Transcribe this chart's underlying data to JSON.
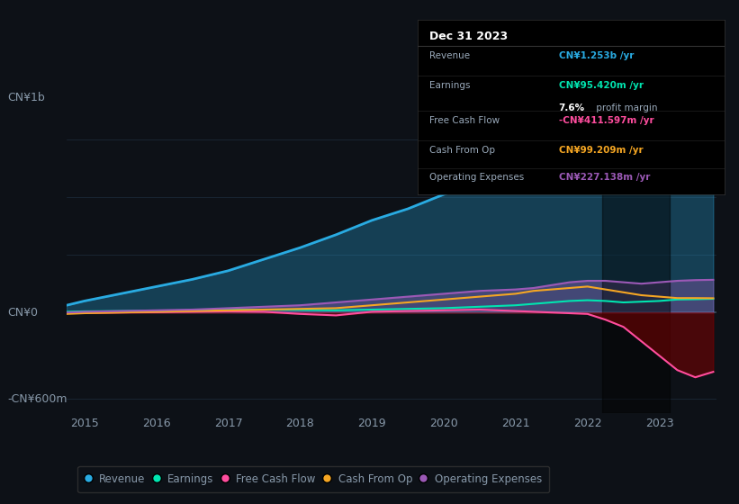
{
  "bg_color": "#0d1117",
  "grid_color": "#1e2d3d",
  "text_color": "#8899aa",
  "years": [
    2014.75,
    2015.0,
    2015.5,
    2016.0,
    2016.5,
    2017.0,
    2017.5,
    2018.0,
    2018.5,
    2019.0,
    2019.5,
    2020.0,
    2020.5,
    2021.0,
    2021.25,
    2021.5,
    2021.75,
    2022.0,
    2022.25,
    2022.5,
    2022.75,
    2023.0,
    2023.25,
    2023.5,
    2023.75
  ],
  "revenue": [
    50,
    80,
    130,
    180,
    230,
    290,
    370,
    450,
    540,
    640,
    720,
    820,
    900,
    980,
    1050,
    1150,
    1250,
    1280,
    1200,
    1100,
    1050,
    1100,
    1180,
    1230,
    1253
  ],
  "earnings": [
    5,
    8,
    10,
    12,
    15,
    18,
    20,
    18,
    15,
    20,
    25,
    30,
    40,
    50,
    60,
    70,
    80,
    85,
    80,
    70,
    75,
    80,
    90,
    92,
    95
  ],
  "free_cash_flow": [
    -5,
    -3,
    0,
    2,
    5,
    8,
    5,
    -10,
    -20,
    5,
    10,
    15,
    20,
    10,
    5,
    0,
    -5,
    -10,
    -50,
    -100,
    -200,
    -300,
    -400,
    -450,
    -412
  ],
  "cash_from_op": [
    -10,
    -5,
    0,
    5,
    10,
    15,
    20,
    25,
    30,
    50,
    70,
    90,
    110,
    130,
    150,
    160,
    170,
    180,
    160,
    140,
    120,
    110,
    100,
    100,
    99
  ],
  "operating_expenses": [
    0,
    5,
    10,
    15,
    20,
    30,
    40,
    50,
    70,
    90,
    110,
    130,
    150,
    160,
    170,
    190,
    210,
    220,
    220,
    210,
    200,
    210,
    220,
    225,
    227
  ],
  "revenue_color": "#29abe2",
  "earnings_color": "#00e5b0",
  "free_cash_flow_color": "#ff4d9e",
  "cash_from_op_color": "#f5a623",
  "op_expenses_color": "#9b59b6",
  "ylim": [
    -700,
    1400
  ],
  "xticks": [
    2015,
    2016,
    2017,
    2018,
    2019,
    2020,
    2021,
    2022,
    2023
  ],
  "highlight_start": 2022.2,
  "highlight_end": 2023.15,
  "legend_labels": [
    "Revenue",
    "Earnings",
    "Free Cash Flow",
    "Cash From Op",
    "Operating Expenses"
  ],
  "legend_colors": [
    "#29abe2",
    "#00e5b0",
    "#ff4d9e",
    "#f5a623",
    "#9b59b6"
  ],
  "tooltip": {
    "title": "Dec 31 2023",
    "rows": [
      {
        "label": "Revenue",
        "value": "CN¥1.253b /yr",
        "color": "#29abe2",
        "sub_bold": null,
        "sub_normal": null
      },
      {
        "label": "Earnings",
        "value": "CN¥95.420m /yr",
        "color": "#00e5b0",
        "sub_bold": "7.6%",
        "sub_normal": " profit margin"
      },
      {
        "label": "Free Cash Flow",
        "value": "-CN¥411.597m /yr",
        "color": "#ff4d9e",
        "sub_bold": null,
        "sub_normal": null
      },
      {
        "label": "Cash From Op",
        "value": "CN¥99.209m /yr",
        "color": "#f5a623",
        "sub_bold": null,
        "sub_normal": null
      },
      {
        "label": "Operating Expenses",
        "value": "CN¥227.138m /yr",
        "color": "#9b59b6",
        "sub_bold": null,
        "sub_normal": null
      }
    ]
  }
}
